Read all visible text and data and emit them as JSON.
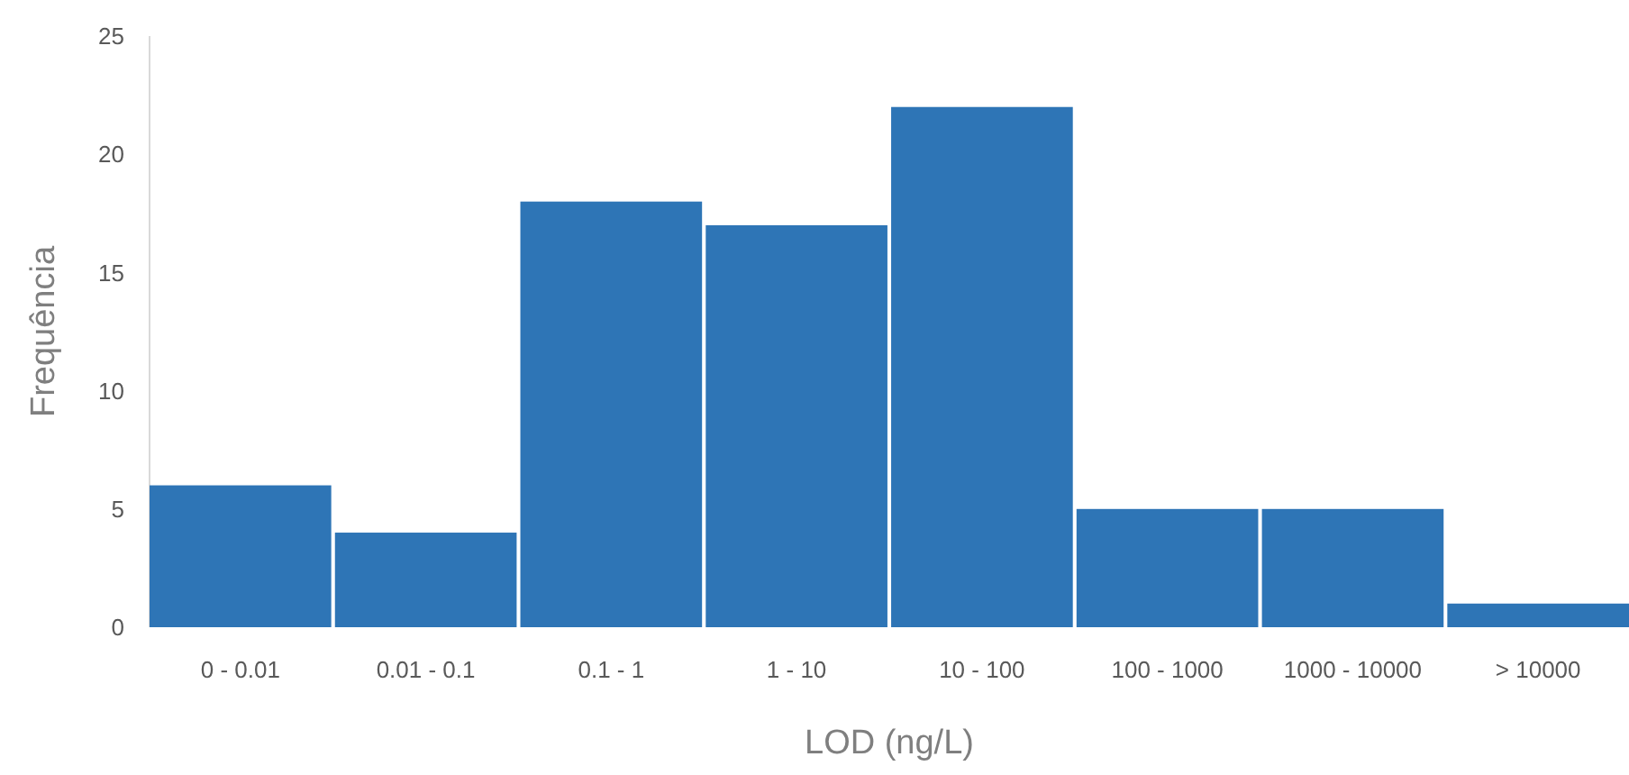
{
  "chart_data": {
    "type": "bar",
    "xlabel": "LOD (ng/L)",
    "ylabel": "Frequência",
    "categories": [
      "0 - 0.01",
      "0.01 - 0.1",
      "0.1 - 1",
      "1 - 10",
      "10 - 100",
      "100 - 1000",
      "1000 - 10000",
      "> 10000"
    ],
    "values": [
      6,
      4,
      18,
      17,
      22,
      5,
      5,
      1
    ],
    "color": "#2e75b6",
    "ylim": [
      0,
      25
    ],
    "yticks": [
      0,
      5,
      10,
      15,
      20,
      25
    ],
    "grid": false
  }
}
